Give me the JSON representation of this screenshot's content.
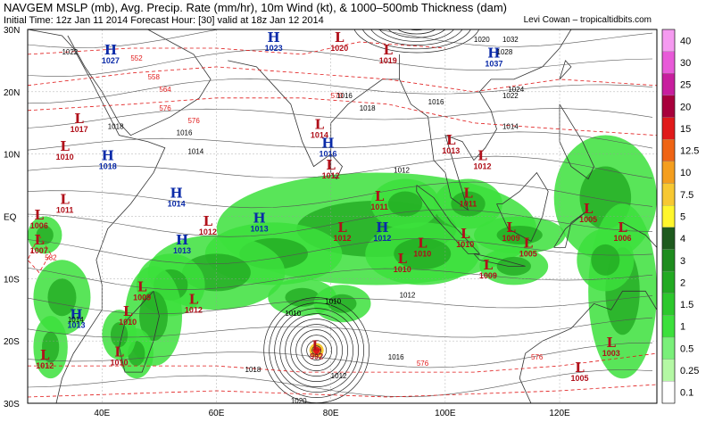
{
  "header": {
    "title": "NAVGEM MSLP (mb), Avg. Precip. Rate (mm/hr), 10m Wind (kt), & 1000–500mb Thickness (dam)",
    "subtitle": "Initial Time: 12z Jan 11 2014 Forecast Hour: [30] valid at 18z Jan 12 2014",
    "credit": "Levi Cowan – tropicaltidbits.com"
  },
  "axes": {
    "lat_labels": [
      "30N",
      "20N",
      "10N",
      "EQ",
      "10S",
      "20S",
      "30S"
    ],
    "lon_labels": [
      "40E",
      "60E",
      "80E",
      "100E",
      "120E"
    ]
  },
  "colorbar": {
    "labels": [
      "40",
      "30",
      "25",
      "20",
      "15",
      "12.5",
      "10",
      "7.5",
      "5",
      "4",
      "3",
      "2",
      "1.5",
      "1",
      "0.5",
      "0.25",
      "0.1"
    ],
    "colors": [
      "#f59af0",
      "#e85ad8",
      "#c81e9e",
      "#a8003c",
      "#e01a1a",
      "#ef6414",
      "#f49e1e",
      "#f7c832",
      "#fff62c",
      "#1e5a1e",
      "#1e8c1e",
      "#22aa22",
      "#2cc82c",
      "#3ce03c",
      "#7af07a",
      "#b4f8a4",
      "#ffffff"
    ]
  },
  "pressure_centers": [
    {
      "type": "H",
      "value": "1027",
      "lon": 41.5,
      "lat": 26
    },
    {
      "type": "H",
      "value": "1023",
      "lon": 70,
      "lat": 28
    },
    {
      "type": "L",
      "value": "1020",
      "lon": 81.5,
      "lat": 28
    },
    {
      "type": "L",
      "value": "1019",
      "lon": 90,
      "lat": 26
    },
    {
      "type": "H",
      "value": "1037",
      "lon": 108.5,
      "lat": 25.5
    },
    {
      "type": "L",
      "value": "1017",
      "lon": 36,
      "lat": 15
    },
    {
      "type": "L",
      "value": "1014",
      "lon": 78,
      "lat": 14
    },
    {
      "type": "H",
      "value": "1016",
      "lon": 79.5,
      "lat": 11
    },
    {
      "type": "L",
      "value": "1010",
      "lon": 33.5,
      "lat": 10.5
    },
    {
      "type": "H",
      "value": "1018",
      "lon": 41,
      "lat": 9
    },
    {
      "type": "L",
      "value": "1012",
      "lon": 80,
      "lat": 7.5
    },
    {
      "type": "L",
      "value": "1013",
      "lon": 101,
      "lat": 11.5
    },
    {
      "type": "L",
      "value": "1012",
      "lon": 106.5,
      "lat": 9
    },
    {
      "type": "L",
      "value": "1011",
      "lon": 33.5,
      "lat": 2
    },
    {
      "type": "H",
      "value": "1014",
      "lon": 53,
      "lat": 3
    },
    {
      "type": "L",
      "value": "1011",
      "lon": 88.5,
      "lat": 2.5
    },
    {
      "type": "L",
      "value": "1011",
      "lon": 104,
      "lat": 3
    },
    {
      "type": "L",
      "value": "1006",
      "lon": 29,
      "lat": -0.5
    },
    {
      "type": "L",
      "value": "1012",
      "lon": 58.5,
      "lat": -1.5
    },
    {
      "type": "H",
      "value": "1013",
      "lon": 67.5,
      "lat": -1
    },
    {
      "type": "L",
      "value": "1012",
      "lon": 82,
      "lat": -2.5
    },
    {
      "type": "H",
      "value": "1012",
      "lon": 89,
      "lat": -2.5
    },
    {
      "type": "L",
      "value": "1009",
      "lon": 111.5,
      "lat": -2.5
    },
    {
      "type": "L",
      "value": "1005",
      "lon": 125,
      "lat": 0.5
    },
    {
      "type": "L",
      "value": "1006",
      "lon": 131,
      "lat": -2.5
    },
    {
      "type": "L",
      "value": "1007",
      "lon": 29,
      "lat": -4.5
    },
    {
      "type": "H",
      "value": "1013",
      "lon": 54,
      "lat": -4.5
    },
    {
      "type": "L",
      "value": "1010",
      "lon": 96,
      "lat": -5
    },
    {
      "type": "L",
      "value": "1010",
      "lon": 103.5,
      "lat": -3.5
    },
    {
      "type": "L",
      "value": "1005",
      "lon": 114.5,
      "lat": -5
    },
    {
      "type": "L",
      "value": "1010",
      "lon": 92.5,
      "lat": -7.5
    },
    {
      "type": "L",
      "value": "1009",
      "lon": 107.5,
      "lat": -8.5
    },
    {
      "type": "L",
      "value": "1009",
      "lon": 47,
      "lat": -12
    },
    {
      "type": "L",
      "value": "1012",
      "lon": 56,
      "lat": -14
    },
    {
      "type": "L",
      "value": "1010",
      "lon": 44.5,
      "lat": -16
    },
    {
      "type": "H",
      "value": "1013",
      "lon": 35.5,
      "lat": -16.5
    },
    {
      "type": "L",
      "value": "992",
      "lon": 77.5,
      "lat": -21.5
    },
    {
      "type": "L",
      "value": "1003",
      "lon": 129,
      "lat": -21
    },
    {
      "type": "L",
      "value": "1010",
      "lon": 43,
      "lat": -22.5
    },
    {
      "type": "L",
      "value": "1012",
      "lon": 30,
      "lat": -23
    },
    {
      "type": "L",
      "value": "1005",
      "lon": 123.5,
      "lat": -25
    }
  ],
  "isobar_labels": [
    "1022",
    "1018",
    "1018",
    "1016",
    "1016",
    "1016",
    "1014",
    "1014",
    "1014",
    "1012",
    "1012",
    "1012",
    "1010",
    "1010",
    "1016",
    "1018",
    "1020",
    "1022",
    "1024",
    "1028",
    "1032",
    "1020"
  ],
  "thickness_labels": [
    "552",
    "558",
    "564",
    "570",
    "576",
    "576",
    "582",
    "576",
    "576"
  ]
}
